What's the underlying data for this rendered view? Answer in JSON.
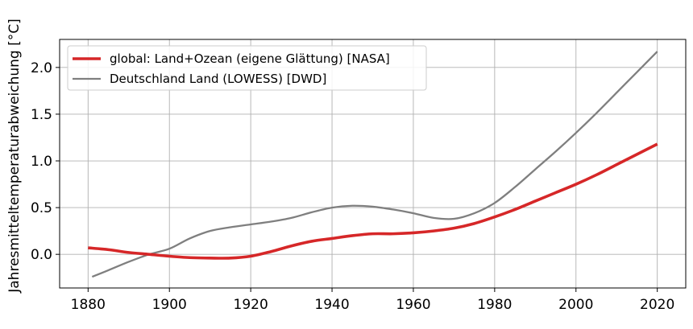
{
  "chart_data": {
    "type": "line",
    "title": "",
    "xlabel": "",
    "ylabel": "Jahresmitteltemperaturabweichung [°C]",
    "xlim": [
      1873,
      2027
    ],
    "ylim": [
      -0.36,
      2.3
    ],
    "xticks": [
      1880,
      1900,
      1920,
      1940,
      1960,
      1980,
      2000,
      2020
    ],
    "yticks": [
      0.0,
      0.5,
      1.0,
      1.5,
      2.0
    ],
    "ytick_labels": [
      "0.0",
      "0.5",
      "1.0",
      "1.5",
      "2.0"
    ],
    "grid": true,
    "legend_position": "top-left",
    "series": [
      {
        "name": "global: Land+Ozean (eigene Glättung) [NASA]",
        "color": "#d62728",
        "line_width": "thick",
        "points": [
          [
            1880,
            0.07
          ],
          [
            1885,
            0.05
          ],
          [
            1890,
            0.02
          ],
          [
            1895,
            0.0
          ],
          [
            1900,
            -0.02
          ],
          [
            1905,
            -0.035
          ],
          [
            1910,
            -0.04
          ],
          [
            1915,
            -0.04
          ],
          [
            1920,
            -0.02
          ],
          [
            1925,
            0.03
          ],
          [
            1930,
            0.09
          ],
          [
            1935,
            0.14
          ],
          [
            1940,
            0.17
          ],
          [
            1945,
            0.2
          ],
          [
            1950,
            0.22
          ],
          [
            1955,
            0.22
          ],
          [
            1960,
            0.23
          ],
          [
            1965,
            0.25
          ],
          [
            1970,
            0.28
          ],
          [
            1975,
            0.33
          ],
          [
            1980,
            0.4
          ],
          [
            1985,
            0.48
          ],
          [
            1990,
            0.57
          ],
          [
            1995,
            0.66
          ],
          [
            2000,
            0.75
          ],
          [
            2005,
            0.85
          ],
          [
            2010,
            0.96
          ],
          [
            2015,
            1.07
          ],
          [
            2020,
            1.18
          ]
        ]
      },
      {
        "name": "Deutschland Land (LOWESS) [DWD]",
        "color": "#7f7f7f",
        "line_width": "normal",
        "points": [
          [
            1881,
            -0.24
          ],
          [
            1885,
            -0.17
          ],
          [
            1890,
            -0.08
          ],
          [
            1895,
            0.0
          ],
          [
            1900,
            0.06
          ],
          [
            1905,
            0.17
          ],
          [
            1910,
            0.25
          ],
          [
            1915,
            0.29
          ],
          [
            1920,
            0.32
          ],
          [
            1925,
            0.35
          ],
          [
            1930,
            0.39
          ],
          [
            1935,
            0.45
          ],
          [
            1940,
            0.5
          ],
          [
            1945,
            0.52
          ],
          [
            1950,
            0.51
          ],
          [
            1955,
            0.48
          ],
          [
            1960,
            0.44
          ],
          [
            1965,
            0.39
          ],
          [
            1970,
            0.38
          ],
          [
            1975,
            0.44
          ],
          [
            1980,
            0.55
          ],
          [
            1985,
            0.72
          ],
          [
            1990,
            0.91
          ],
          [
            1995,
            1.1
          ],
          [
            2000,
            1.3
          ],
          [
            2005,
            1.51
          ],
          [
            2010,
            1.73
          ],
          [
            2015,
            1.95
          ],
          [
            2020,
            2.17
          ]
        ]
      }
    ]
  }
}
